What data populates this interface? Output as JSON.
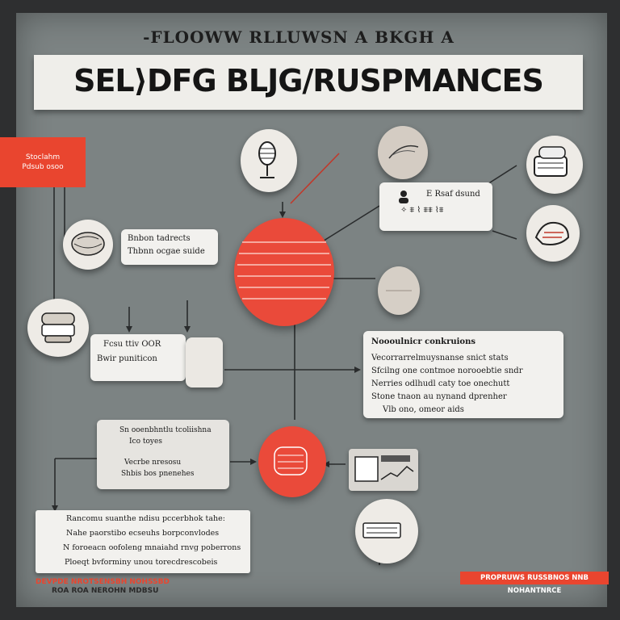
{
  "header": {
    "tagline": "-FLOOWW RLLUWSN A BKGH A",
    "title": "SEL⟩DFG BLJG/RUSPMANCES"
  },
  "left_tab": {
    "lines": [
      "Stoclahm",
      "Pdsub osoo"
    ]
  },
  "cards": {
    "top_left": {
      "lines": [
        "Bnbon tadrects",
        "Thbnn ocgae suide"
      ]
    },
    "top_right": {
      "lines": [
        "E Rsaf dsund",
        "✧ ⩨ ⌇ ⩨⩨ ⌇⩨"
      ]
    },
    "mid_left": {
      "lines": [
        "Fcsu ttiv OOR",
        "Bwir puniticon"
      ]
    },
    "right_big": {
      "heading": "Noooulnicr conkruions",
      "lines": [
        "Vecorrarrelmuysnanse snict stats",
        "Sfcilng one contmoe norooebtie sndr",
        "Nerries odlhudl caty toe onechutt",
        "Stone tnaon au nynand dprenher",
        "Vlb ono, omeor aids"
      ]
    },
    "center_left": {
      "lines": [
        "Sn ooenbhntlu tcoliishna",
        "Ico toyes",
        "Vecrbe nresosu",
        "Shbis bos pnenehes"
      ]
    },
    "bottom_left": {
      "lines": [
        "Rancomu suanthe ndisu pccerbhok tahe:",
        "Nahe paorstibo ecseuhs borpconvlodes",
        "N foroeacn oofoleng mnaiahd rnvg poberrons",
        "Ploeqt bvforminy unou torecdrescobeis"
      ]
    }
  },
  "footer": {
    "left": [
      "DEVPDE NROTSENSBH NOHSSBD",
      "ROA ROA NEROHN MDBSU"
    ],
    "right": "PROPRUWS RUSSBNOS NNB NOHANTNRCE"
  },
  "colors": {
    "accent": "#e9452f",
    "panel": "#7c8383",
    "paper": "#efeeea",
    "ink": "#1a1a1a"
  },
  "icons": [
    "microphone-icon",
    "feather-icon",
    "keyboard-icon",
    "hand-icon",
    "globe-icon",
    "gear-icon",
    "document-icon",
    "dashboard-icon",
    "keyboard-device-icon",
    "egg-icon",
    "server-icon"
  ]
}
